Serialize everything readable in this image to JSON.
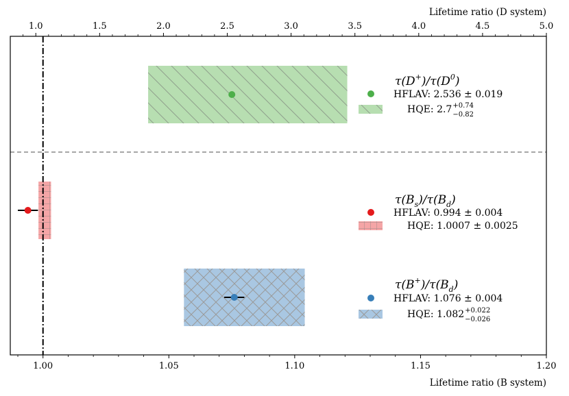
{
  "chart_data": {
    "type": "errorbar-band",
    "bottom_axis": {
      "label": "Lifetime ratio (B system)",
      "xlim": [
        0.987,
        1.2
      ],
      "ticks": [
        1.0,
        1.05,
        1.1,
        1.15,
        1.2
      ],
      "tick_labels": [
        "1.00",
        "1.05",
        "1.10",
        "1.15",
        "1.20"
      ]
    },
    "top_axis": {
      "label": "Lifetime ratio (D system)",
      "xlim": [
        0.8,
        5.0
      ],
      "ticks": [
        1.0,
        1.5,
        2.0,
        2.5,
        3.0,
        3.5,
        4.0,
        4.5,
        5.0
      ],
      "tick_labels": [
        "1.0",
        "1.5",
        "2.0",
        "2.5",
        "3.0",
        "3.5",
        "4.0",
        "4.5",
        "5.0"
      ]
    },
    "reference_line": {
      "x": 1.0,
      "style": "dash-dot",
      "color": "#000000"
    },
    "separator": {
      "style": "dashed",
      "color": "#888888"
    },
    "groups": [
      {
        "key": "D",
        "axis": "top",
        "title_num": "τ(D",
        "title_num_sup": "+",
        "title_den": ")/τ(D",
        "title_den_sup": "0",
        "title_end": ")",
        "color": "#4daf4a",
        "band_color": "#b7deb1",
        "hatch": "backslash",
        "hflav": {
          "value": 2.536,
          "error": 0.019,
          "label_prefix": "HFLAV: ",
          "label_value": "2.536 ± 0.019"
        },
        "hqe": {
          "value": 2.7,
          "err_up": 0.74,
          "err_down": 0.82,
          "label_prefix": "HQE: ",
          "label_value": "2.7",
          "sup": "+0.74",
          "sub": "−0.82"
        }
      },
      {
        "key": "Bs",
        "axis": "bottom",
        "title_num": "τ(B",
        "title_num_sub": "s",
        "title_den": ")/τ(B",
        "title_den_sub": "d",
        "title_end": ")",
        "color": "#e41a1c",
        "band_color": "#f5a5a6",
        "hatch": "grid",
        "hflav": {
          "value": 0.994,
          "error": 0.004,
          "label_prefix": "HFLAV: ",
          "label_value": "0.994 ± 0.004"
        },
        "hqe": {
          "value": 1.0007,
          "err_up": 0.0025,
          "err_down": 0.0025,
          "label_prefix": "HQE: ",
          "label_value": "1.0007 ± 0.0025"
        }
      },
      {
        "key": "Bplus",
        "axis": "bottom",
        "title_num": "τ(B",
        "title_num_sup": "+",
        "title_den": ")/τ(B",
        "title_den_sub": "d",
        "title_end": ")",
        "color": "#377eb8",
        "band_color": "#a9c7e2",
        "hatch": "cross",
        "hflav": {
          "value": 1.076,
          "error": 0.004,
          "label_prefix": "HFLAV: ",
          "label_value": "1.076 ± 0.004"
        },
        "hqe": {
          "value": 1.082,
          "err_up": 0.022,
          "err_down": 0.026,
          "label_prefix": "HQE: ",
          "label_value": "1.082",
          "sup": "+0.022",
          "sub": "−0.026"
        }
      }
    ]
  }
}
